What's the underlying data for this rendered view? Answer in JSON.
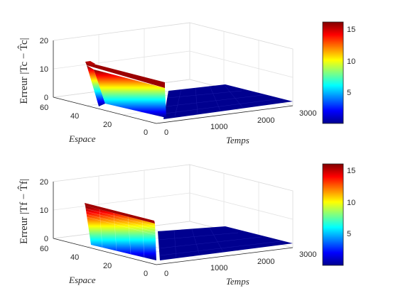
{
  "chart_data": [
    {
      "type": "surface",
      "zlabel": "Erreur |Tc − T̂c|",
      "xlabel": "Temps",
      "ylabel": "Espace",
      "xlim": [
        0,
        3000
      ],
      "ylim": [
        0,
        60
      ],
      "zlim": [
        0,
        20
      ],
      "xticks": [
        "0",
        "1000",
        "2000",
        "3000"
      ],
      "yticks": [
        "0",
        "20",
        "40",
        "60"
      ],
      "zticks": [
        "0",
        "10",
        "20"
      ],
      "colorbar": {
        "colormap": "jet",
        "range": [
          0,
          16
        ],
        "ticks": [
          "5",
          "10",
          "15"
        ]
      },
      "grid": true,
      "surface": {
        "error_plateau": 12,
        "plateau_time_start": 0,
        "plateau_time_end": 300,
        "plateau_space_min": 12,
        "plateau_space_max": 50,
        "baseline": 0.3
      }
    },
    {
      "type": "surface",
      "zlabel": "Erreur |Tf − T̂f|",
      "xlabel": "Temps",
      "ylabel": "Espace",
      "xlim": [
        0,
        3000
      ],
      "ylim": [
        0,
        60
      ],
      "zlim": [
        0,
        20
      ],
      "xticks": [
        "0",
        "1000",
        "2000",
        "3000"
      ],
      "yticks": [
        "0",
        "20",
        "40",
        "60"
      ],
      "zticks": [
        "0",
        "10",
        "20"
      ],
      "colorbar": {
        "colormap": "jet",
        "range": [
          0,
          16
        ],
        "ticks": [
          "5",
          "10",
          "15"
        ]
      },
      "grid": true,
      "surface": {
        "error_plateau": 12,
        "plateau_time_start": 0,
        "plateau_time_end": 200,
        "plateau_space_min": 12,
        "plateau_space_max": 50,
        "baseline": 0.3
      }
    }
  ]
}
